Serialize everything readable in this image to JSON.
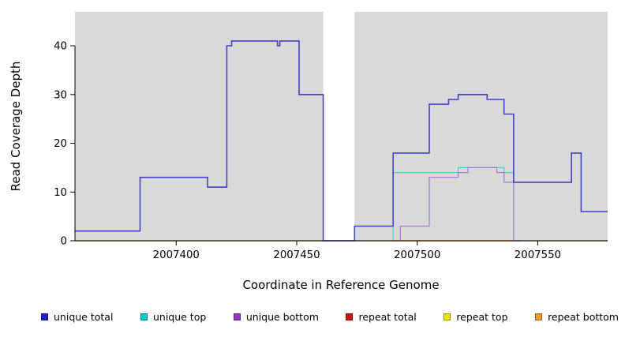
{
  "chart_data": {
    "type": "line",
    "subtype": "step",
    "title": "",
    "xlabel": "Coordinate in Reference Genome",
    "ylabel": "Read Coverage Depth",
    "x_range": [
      2007358,
      2007579
    ],
    "y_range": [
      0,
      46
    ],
    "x_ticks": [
      2007400,
      2007450,
      2007500,
      2007550
    ],
    "y_ticks": [
      0,
      10,
      20,
      30,
      40
    ],
    "grid": false,
    "legend_position": "bottom",
    "plot_background": "#d9d9d9",
    "page_background": "#ffffff",
    "gap_band": {
      "x_start": 2007461,
      "x_end": 2007474,
      "color": "#ffffff"
    },
    "series": [
      {
        "name": "unique total",
        "legend_color": "#2121cc",
        "line_color": "#4242c8",
        "line_width": 1.6,
        "draw_order": 6,
        "points": [
          [
            2007358,
            2
          ],
          [
            2007385,
            13
          ],
          [
            2007413,
            11
          ],
          [
            2007421,
            40
          ],
          [
            2007423,
            41
          ],
          [
            2007442,
            40
          ],
          [
            2007443,
            41
          ],
          [
            2007451,
            30
          ],
          [
            2007461,
            0
          ],
          [
            2007474,
            3
          ],
          [
            2007490,
            18
          ],
          [
            2007505,
            28
          ],
          [
            2007513,
            29
          ],
          [
            2007517,
            30
          ],
          [
            2007529,
            29
          ],
          [
            2007536,
            26
          ],
          [
            2007540,
            12
          ],
          [
            2007564,
            18
          ],
          [
            2007568,
            6
          ],
          [
            2007579,
            6
          ]
        ]
      },
      {
        "name": "unique top",
        "legend_color": "#00cccc",
        "line_color": "#45d1d1",
        "line_width": 1.2,
        "draw_order": 4,
        "points": [
          [
            2007490,
            0
          ],
          [
            2007490,
            14
          ],
          [
            2007517,
            15
          ],
          [
            2007536,
            14
          ],
          [
            2007540,
            0
          ],
          [
            2007543,
            0
          ]
        ]
      },
      {
        "name": "unique bottom",
        "legend_color": "#9933cc",
        "line_color": "#a379d6",
        "line_width": 1.2,
        "draw_order": 5,
        "points": [
          [
            2007493,
            0
          ],
          [
            2007493,
            3
          ],
          [
            2007505,
            13
          ],
          [
            2007517,
            14
          ],
          [
            2007521,
            15
          ],
          [
            2007533,
            14
          ],
          [
            2007536,
            12
          ],
          [
            2007540,
            0
          ],
          [
            2007543,
            0
          ]
        ]
      },
      {
        "name": "repeat total",
        "legend_color": "#cc1111",
        "line_color": "#cc1111",
        "line_width": 1.2,
        "draw_order": 1,
        "points": [
          [
            2007358,
            0
          ],
          [
            2007579,
            0
          ]
        ]
      },
      {
        "name": "repeat top",
        "legend_color": "#e8e800",
        "line_color": "#8fd98f",
        "line_width": 1.2,
        "draw_order": 2,
        "points": [
          [
            2007358,
            0
          ],
          [
            2007579,
            0
          ]
        ]
      },
      {
        "name": "repeat bottom",
        "legend_color": "#f59b2a",
        "line_color": "#f59b2a",
        "line_width": 1.4,
        "draw_order": 3,
        "points": [
          [
            2007490,
            0
          ],
          [
            2007540,
            0
          ]
        ]
      }
    ]
  }
}
